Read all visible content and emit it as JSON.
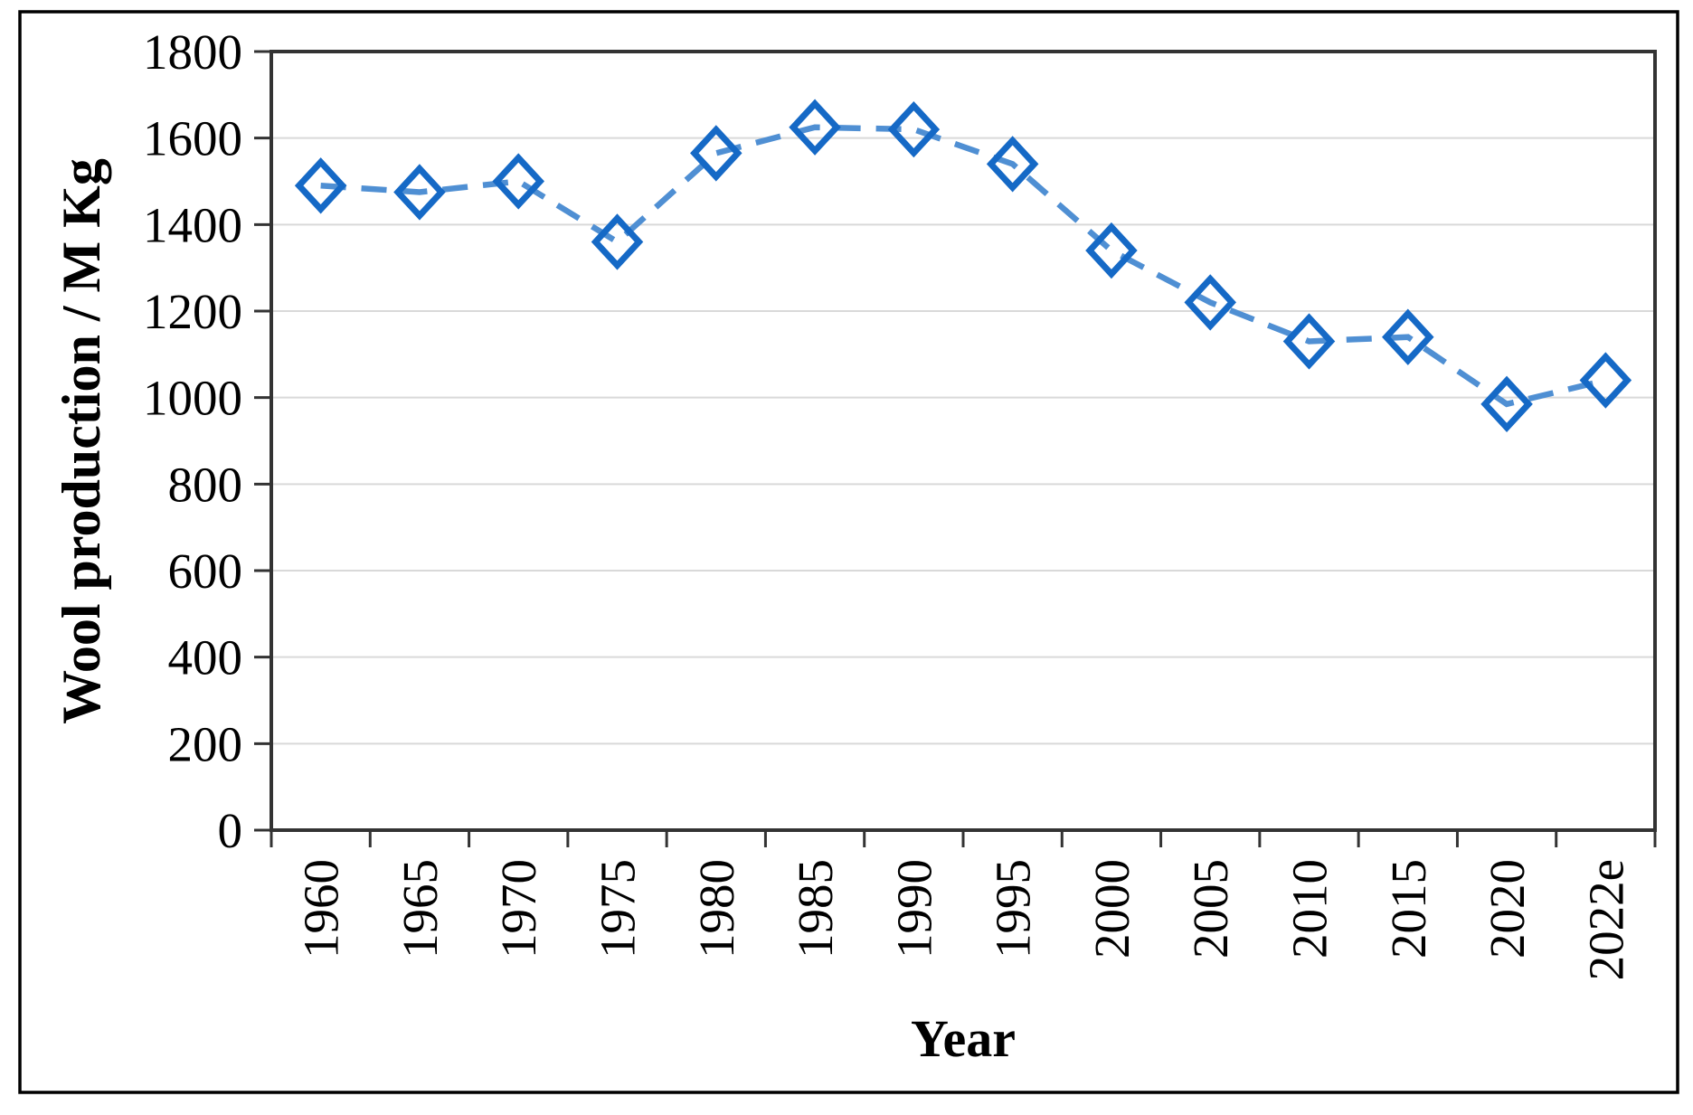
{
  "chart_data": {
    "type": "line",
    "title": "",
    "xlabel": "Year",
    "ylabel": "Wool production / M Kg",
    "categories": [
      "1960",
      "1965",
      "1970",
      "1975",
      "1980",
      "1985",
      "1990",
      "1995",
      "2000",
      "2005",
      "2010",
      "2015",
      "2020",
      "2022e"
    ],
    "series": [
      {
        "name": "Wool production",
        "values": [
          1490,
          1475,
          1500,
          1360,
          1565,
          1625,
          1620,
          1540,
          1340,
          1220,
          1130,
          1140,
          985,
          1040
        ]
      }
    ],
    "ylim": [
      0,
      1800
    ],
    "ytick_interval": 200,
    "ytick_labels": [
      "0",
      "200",
      "400",
      "600",
      "800",
      "1000",
      "1200",
      "1400",
      "1600",
      "1800"
    ],
    "grid": "horizontal-only",
    "legend": "none",
    "line_style": "dashed",
    "marker_shape": "open-diamond",
    "colors": {
      "line": "#4f8fd3",
      "marker_outline": "#1569c6",
      "gridline": "#d9d9d9",
      "axis": "#333333",
      "figure_border": "#000000",
      "text": "#000000",
      "background": "#ffffff"
    }
  }
}
